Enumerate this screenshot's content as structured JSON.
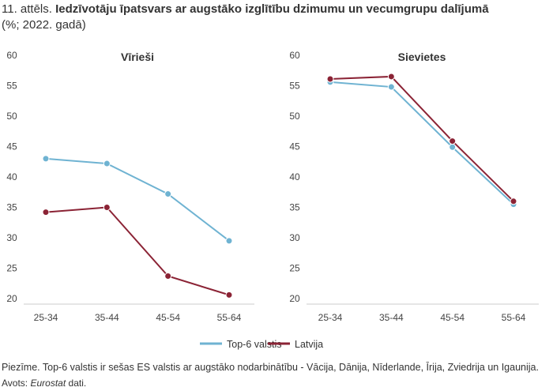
{
  "header": {
    "figure_number": "11. attēls.",
    "title": "Iedzīvotāju īpatsvars ar augstāko izglītību dzimumu un vecumgrupu dalījumā",
    "subtitle": "(%; 2022. gadā)"
  },
  "chart_data": [
    {
      "type": "line",
      "title": "Vīrieši",
      "categories": [
        "25-34",
        "35-44",
        "45-54",
        "55-64"
      ],
      "ylim": [
        20,
        60
      ],
      "yticks": [
        20,
        25,
        30,
        35,
        40,
        45,
        50,
        55,
        60
      ],
      "grid": false,
      "series": [
        {
          "name": "Top-6 valstis",
          "color": "#6FB3D2",
          "values": [
            43.0,
            42.2,
            37.2,
            29.5
          ]
        },
        {
          "name": "Latvija",
          "color": "#8B2335",
          "values": [
            34.2,
            35.0,
            23.7,
            20.6
          ]
        }
      ]
    },
    {
      "type": "line",
      "title": "Sievietes",
      "categories": [
        "25-34",
        "35-44",
        "45-54",
        "55-64"
      ],
      "ylim": [
        20,
        60
      ],
      "yticks": [
        20,
        25,
        30,
        35,
        40,
        45,
        50,
        55,
        60
      ],
      "grid": false,
      "series": [
        {
          "name": "Top-6 valstis",
          "color": "#6FB3D2",
          "values": [
            55.6,
            54.8,
            44.9,
            35.5
          ]
        },
        {
          "name": "Latvija",
          "color": "#8B2335",
          "values": [
            56.1,
            56.5,
            45.9,
            36.0
          ]
        }
      ]
    }
  ],
  "legend": {
    "position": "bottom-center",
    "items": [
      {
        "label": "Top-6 valstis",
        "color": "#6FB3D2"
      },
      {
        "label": "Latvija",
        "color": "#8B2335"
      }
    ]
  },
  "footer": {
    "note": "Piezīme. Top-6 valstis ir sešas ES valstis ar augstāko nodarbinātību - Vācija, Dānija, Nīderlande, Īrija, Zviedrija un Igaunija.",
    "source_prefix": "Avots:",
    "source_name": "Eurostat",
    "source_suffix": "dati."
  }
}
